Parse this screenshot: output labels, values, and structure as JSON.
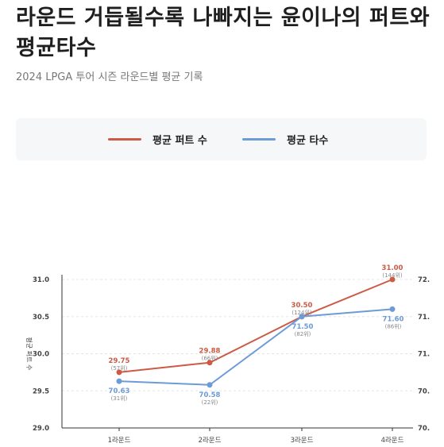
{
  "header": {
    "title": "라운드 거듭될수록 나빠지는 윤이나의 퍼트와 평균타수",
    "subtitle": "2024 LPGA 투어 시즌 라운드별 평균 기록"
  },
  "legend": {
    "items": [
      {
        "label": "평균 퍼트 수",
        "color": "#cc5a45"
      },
      {
        "label": "평균 타수",
        "color": "#6c9bd6"
      }
    ]
  },
  "chart_data": {
    "type": "line",
    "categories": [
      "1라운드",
      "2라운드",
      "3라운드",
      "4라운드"
    ],
    "ylabel": "평균 퍼트 수",
    "ylim": [
      29.0,
      31.0
    ],
    "yticks": [
      "29.0",
      "29.5",
      "30.0",
      "30.5",
      "31.0"
    ],
    "y2ticks": [
      "70.",
      "70.",
      "71.",
      "71.",
      "72."
    ],
    "grid": true,
    "legend": "top",
    "series": [
      {
        "name": "평균 퍼트 수",
        "axis": "left",
        "color": "#cc5a45",
        "values": [
          29.75,
          29.88,
          30.5,
          31.0
        ],
        "labels": [
          "29.75",
          "29.88",
          "30.50",
          "31.00"
        ],
        "ranks": [
          "(57위)",
          "(66위)",
          "(124위)",
          "(144위)"
        ]
      },
      {
        "name": "평균 타수",
        "axis": "right",
        "y2lim": [
          70.0,
          72.0
        ],
        "color": "#6c9bd6",
        "values": [
          70.63,
          70.58,
          71.5,
          71.6
        ],
        "labels": [
          "70.63",
          "70.58",
          "71.50",
          "71.60"
        ],
        "ranks": [
          "(31위)",
          "(22위)",
          "(82위)",
          "(86위)"
        ]
      }
    ]
  }
}
